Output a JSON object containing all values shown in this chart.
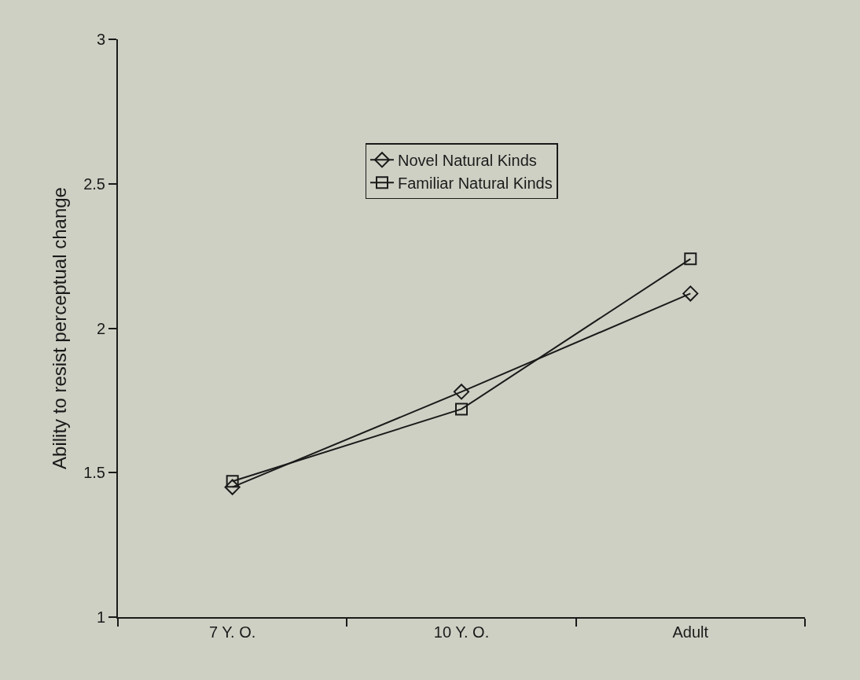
{
  "chart_data": {
    "type": "line",
    "ylabel": "Ability to resist perceptual change",
    "categories": [
      "7 Y. O.",
      "10 Y. O.",
      "Adult"
    ],
    "series": [
      {
        "name": "Novel Natural Kinds",
        "color": "#1a1a1a",
        "marker": "diamond",
        "values": [
          1.45,
          1.78,
          2.12
        ]
      },
      {
        "name": "Familiar Natural Kinds",
        "color": "#1a1a1a",
        "marker": "square",
        "values": [
          1.47,
          1.72,
          2.24
        ]
      }
    ],
    "ylim": [
      1,
      3
    ],
    "yticks": [
      1,
      1.5,
      2,
      2.5,
      3
    ],
    "grid": false,
    "legend": "top",
    "line_style": "solid"
  }
}
